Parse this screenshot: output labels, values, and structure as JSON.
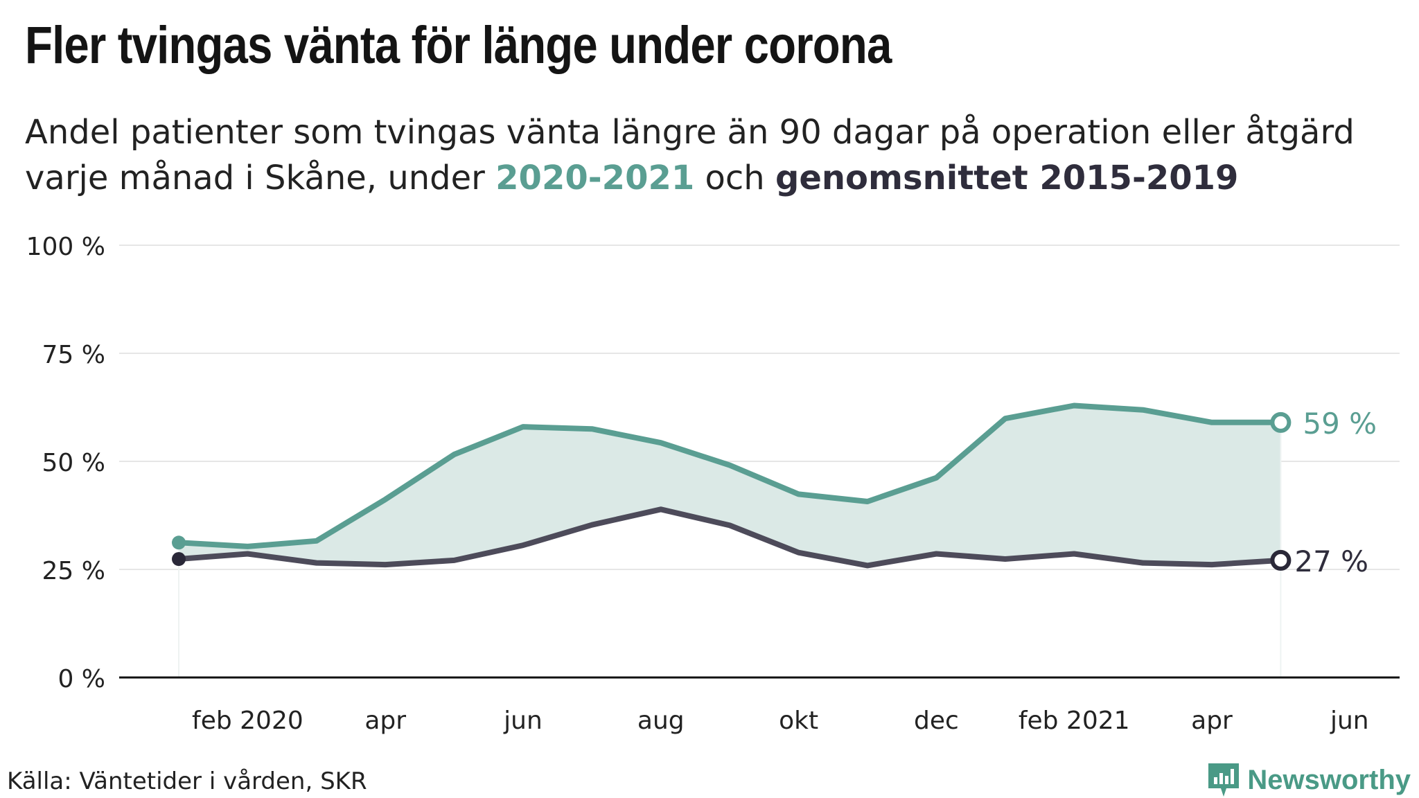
{
  "header": {
    "title": "Fler tvingas vänta för länge under corona",
    "subtitle_line1": "Andel patienter som tvingas vänta längre än 90 dagar på operation eller åtgärd",
    "subtitle_line2_prefix": "varje månad i Skåne, under ",
    "subtitle_highlight1": "2020-2021",
    "subtitle_middle": " och ",
    "subtitle_highlight2": "genomsnittet 2015-2019"
  },
  "footer": {
    "source": "Källa: Väntetider i vården, SKR",
    "brand": "Newsworthy",
    "brand_icon": "newsworthy-logo-icon"
  },
  "colors": {
    "series_2020": "#5a9e92",
    "series_avg": "#4d4b5a",
    "fill": "#dbe9e6",
    "grid": "#e6e6e6",
    "axis": "#111111"
  },
  "chart_data": {
    "type": "line",
    "x": [
      "2020-01",
      "2020-02",
      "2020-03",
      "2020-04",
      "2020-05",
      "2020-06",
      "2020-07",
      "2020-08",
      "2020-09",
      "2020-10",
      "2020-11",
      "2020-12",
      "2021-01",
      "2021-02",
      "2021-03",
      "2021-04",
      "2021-05"
    ],
    "series": [
      {
        "name": "2020-2021",
        "values": [
          31.2,
          30.3,
          31.6,
          41.2,
          51.6,
          58.0,
          57.5,
          54.3,
          49.1,
          42.4,
          40.7,
          46.2,
          59.9,
          62.9,
          61.9,
          59.0,
          59.0
        ]
      },
      {
        "name": "genomsnittet 2015-2019",
        "values": [
          27.4,
          28.6,
          26.5,
          26.1,
          27.1,
          30.6,
          35.3,
          38.9,
          35.2,
          28.9,
          25.9,
          28.6,
          27.4,
          28.6,
          26.5,
          26.1,
          27.1
        ]
      }
    ],
    "end_labels": [
      "59 %",
      "27 %"
    ],
    "y_ticks": [
      "0 %",
      "25 %",
      "50 %",
      "75 %",
      "100 %"
    ],
    "x_ticks": [
      "feb 2020",
      "apr",
      "jun",
      "aug",
      "okt",
      "dec",
      "feb 2021",
      "apr",
      "jun"
    ],
    "ylim": [
      0,
      100
    ],
    "grid": true,
    "legend": "subtitle"
  }
}
